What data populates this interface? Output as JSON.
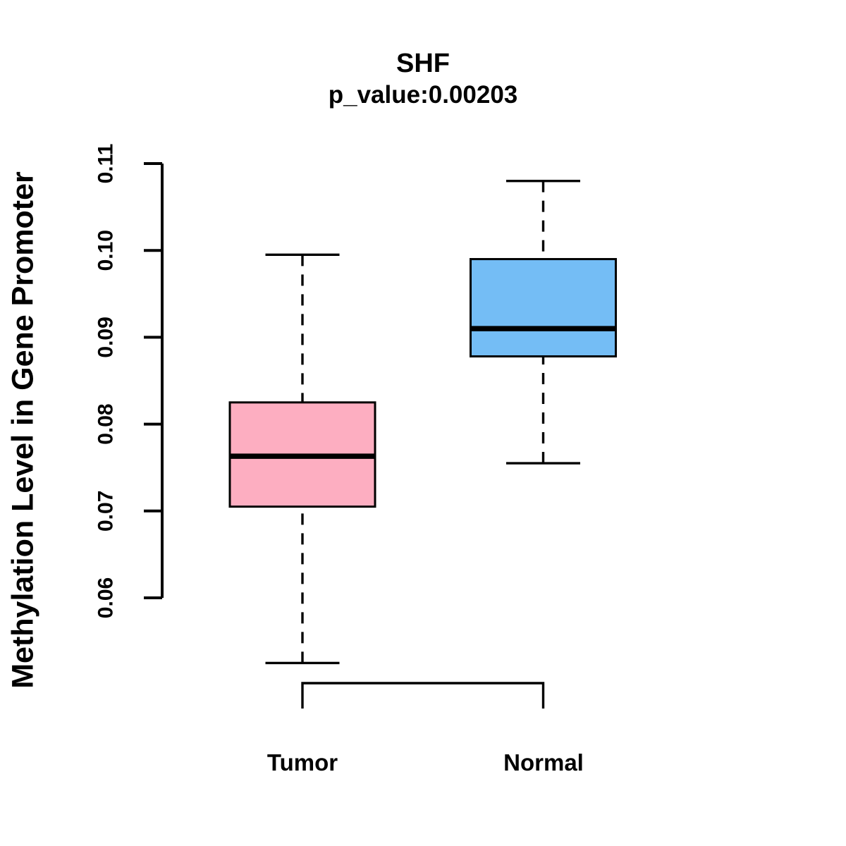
{
  "figure": {
    "background": "#FFFFFF",
    "axis_color": "#000000"
  },
  "chart_data": {
    "type": "boxplot",
    "title": "SHF",
    "subtitle": "p_value:0.00203",
    "ylabel": "Methylation Level in Gene Promoter",
    "xlabel": "",
    "ylim": [
      0.06,
      0.11
    ],
    "yticks": [
      "0.06",
      "0.07",
      "0.08",
      "0.09",
      "0.10",
      "0.11"
    ],
    "categories": [
      "Tumor",
      "Normal"
    ],
    "grid": false,
    "legend": "none",
    "series": [
      {
        "name": "Tumor",
        "box_color": "#FDAEC1",
        "border_color": "#000000",
        "whisker_low": 0.0525,
        "q1": 0.0705,
        "median": 0.0763,
        "q3": 0.0825,
        "whisker_high": 0.0995
      },
      {
        "name": "Normal",
        "box_color": "#74BDF5",
        "border_color": "#000000",
        "whisker_low": 0.0755,
        "q1": 0.0878,
        "median": 0.091,
        "q3": 0.099,
        "whisker_high": 0.108
      }
    ]
  }
}
